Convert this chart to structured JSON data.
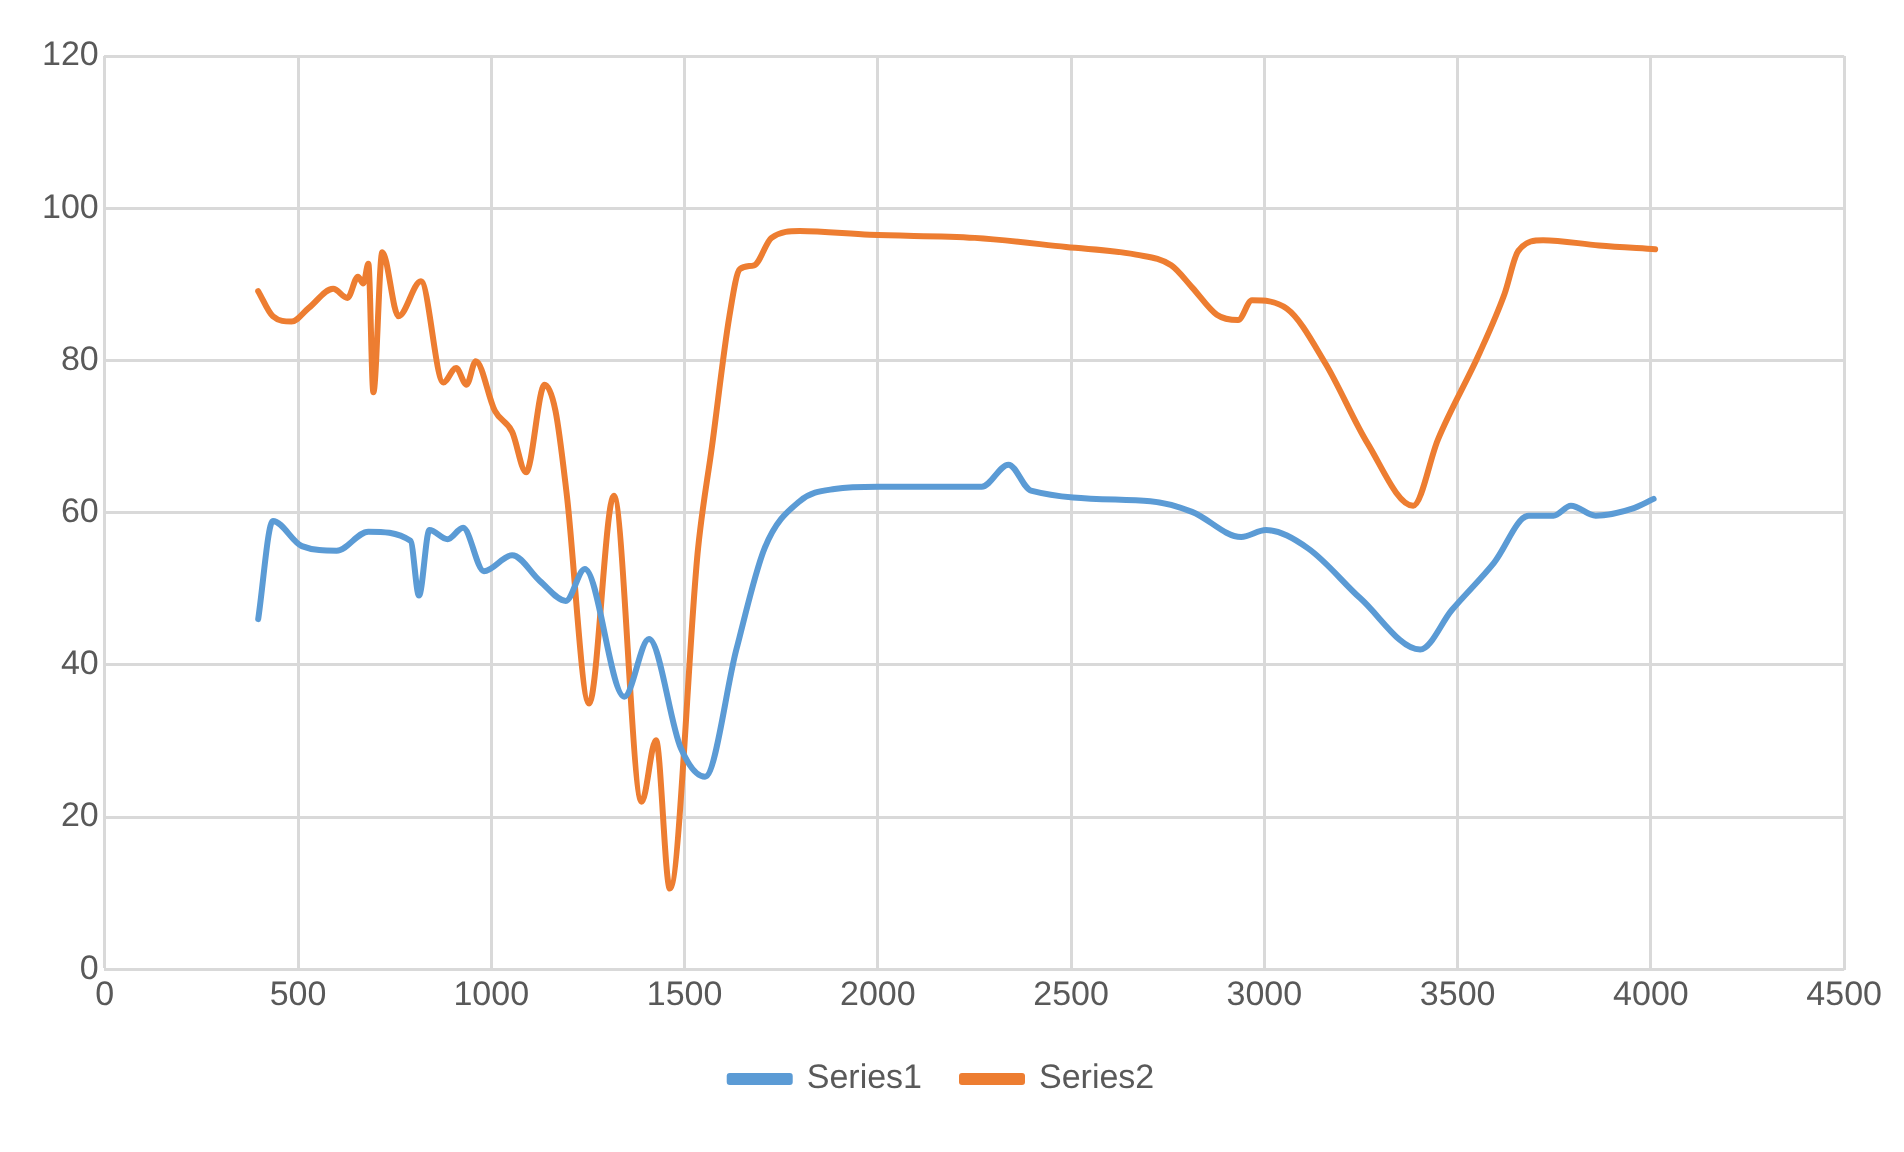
{
  "chart_data": {
    "type": "line",
    "xlim": [
      0,
      4500
    ],
    "xticks": [
      0,
      500,
      1000,
      1500,
      2000,
      2500,
      3000,
      3500,
      4000,
      4500
    ],
    "ylim": [
      0,
      120
    ],
    "yticks": [
      0,
      20,
      40,
      60,
      80,
      100,
      120
    ],
    "grid": true,
    "legend": "bottom",
    "marker": "none",
    "series": [
      {
        "name": "Series1",
        "color": "#5b9bd5",
        "x": [
          397,
          435,
          510,
          600,
          682,
          791,
          813,
          840,
          887,
          927,
          981,
          1054,
          1126,
          1193,
          1242,
          1344,
          1408,
          1490,
          1553,
          1634,
          1707,
          1798,
          1888,
          2001,
          2269,
          2338,
          2396,
          2705,
          2813,
          2940,
          3004,
          3113,
          3249,
          3403,
          3485,
          3594,
          3684,
          3748,
          3793,
          3857,
          3956,
          4007
        ],
        "values": [
          46,
          58.9,
          55.6,
          55,
          57.5,
          56.3,
          49.1,
          57.7,
          56.5,
          58,
          52.3,
          54.4,
          51,
          48.4,
          52.6,
          35.8,
          43.4,
          29.1,
          25.3,
          42,
          55.3,
          61.5,
          63.1,
          63.4,
          63.4,
          66.3,
          62.9,
          61.5,
          60.1,
          56.8,
          57.7,
          55.3,
          48.7,
          42,
          47.2,
          53.4,
          59.6,
          59.6,
          60.9,
          59.6,
          60.6,
          61.8
        ]
      },
      {
        "name": "Series2",
        "color": "#ed7d31",
        "x": [
          397,
          435,
          483,
          528,
          591,
          628,
          655,
          669,
          682,
          695,
          718,
          760,
          818,
          876,
          909,
          936,
          960,
          1009,
          1054,
          1090,
          1138,
          1166,
          1195,
          1253,
          1317,
          1389,
          1426,
          1462,
          1535,
          1571,
          1616,
          1643,
          1680,
          1725,
          1798,
          1979,
          2251,
          2487,
          2668,
          2759,
          2813,
          2877,
          2932,
          2968,
          3058,
          3158,
          3267,
          3385,
          3449,
          3557,
          3621,
          3657,
          3721,
          3866,
          4011
        ],
        "values": [
          89.1,
          85.8,
          85.1,
          86.9,
          89.4,
          88.2,
          91,
          90.1,
          92.7,
          75.8,
          94.2,
          85.8,
          90.4,
          77.1,
          79,
          76.8,
          79.9,
          73.4,
          70.6,
          65.3,
          76.8,
          73.4,
          62.5,
          34.9,
          62.2,
          22,
          30.1,
          10.6,
          55.3,
          68.7,
          85.8,
          92,
          92.5,
          96.1,
          97,
          96.5,
          96.1,
          94.9,
          93.9,
          92.5,
          89.6,
          86,
          85.3,
          87.9,
          86.8,
          79.6,
          69.1,
          60.9,
          69.6,
          81,
          88.7,
          94.4,
          95.8,
          95.1,
          94.6
        ]
      }
    ]
  }
}
